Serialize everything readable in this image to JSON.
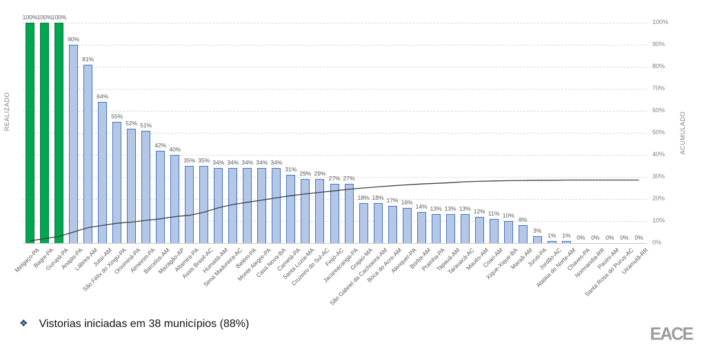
{
  "chart_data": {
    "type": "bar",
    "title": "",
    "left_axis_label": "REALIZADO",
    "right_axis_label": "ACUMULADO",
    "ylim": [
      0,
      100
    ],
    "grid": true,
    "right_axis_ticks": [
      "100%",
      "90%",
      "80%",
      "70%",
      "60%",
      "50%",
      "40%",
      "30%",
      "20%",
      "10%",
      "0%"
    ],
    "highlight_first_n": 3,
    "categories": [
      "Melgaço-PA",
      "Bagre-PA",
      "Gurupá-PA",
      "Anajás-PA",
      "Lábrea-AM",
      "Jutaí-AM",
      "São Félix do Xingu-PA",
      "Oriximiná-PA",
      "Almeirim-PA",
      "Barcelos-AM",
      "Mazagão-AP",
      "Altamira-PA",
      "Assis Brasil-AC",
      "Humaitá-AM",
      "Sena Madureira-AC",
      "Belém-PA",
      "Monte Alegre-PA",
      "Casa Nova-BA",
      "Cametá-PA",
      "Santa Luzia-MA",
      "Cruzeiro do Sul-AC",
      "Feijó-AC",
      "Jacareacanga-PA",
      "Grajaú-MA",
      "São Gabriel da Cachoeira-AM",
      "Boca do Acre-AM",
      "Alenquer-PA",
      "Borba-AM",
      "Prainha-PA",
      "Tapauá-AM",
      "Tarauacá-AC",
      "Maués-AM",
      "Coari-AM",
      "Xique-Xique-BA",
      "Maraã-AM",
      "Juruti-PA",
      "Jordão-AC",
      "Atalaia do Norte-AM",
      "Chaves-PA",
      "Normandia-RR",
      "Pauini-AM",
      "Santa Rosa do Purus-AC",
      "Uiramutã-RR"
    ],
    "series": [
      {
        "name": "Realizado",
        "type": "bar",
        "values": [
          100,
          100,
          100,
          90,
          81,
          64,
          55,
          52,
          51,
          42,
          40,
          35,
          35,
          34,
          34,
          34,
          34,
          34,
          31,
          29,
          29,
          27,
          27,
          18,
          18,
          17,
          16,
          14,
          13,
          13,
          13,
          12,
          11,
          10,
          8,
          3,
          1,
          1,
          0,
          0,
          0,
          0,
          0
        ]
      },
      {
        "name": "Acumulado",
        "type": "line",
        "values": [
          1,
          2,
          3,
          5,
          7,
          8,
          9,
          9.5,
          10.3,
          11,
          12,
          12.6,
          14,
          16,
          17.5,
          18.5,
          19.5,
          20.5,
          21.5,
          22.3,
          23,
          23.7,
          24.4,
          25,
          25.5,
          26,
          26.4,
          26.8,
          27.1,
          27.4,
          27.8,
          28,
          28.2,
          28.3,
          28.4,
          28.5,
          28.5,
          28.6,
          28.6,
          28.6,
          28.6,
          28.6,
          28.6
        ]
      }
    ],
    "colors": {
      "bar_fill": "#B4C7E7",
      "bar_border": "#4472C4",
      "highlight_fill": "#00A651",
      "highlight_border": "#0B7A3C",
      "line_color": "#3F3F3F",
      "grid_color": "#D9D9D9",
      "value_label_color": "#595959",
      "tick_color": "#808080"
    }
  },
  "footer": {
    "bullet": "❖",
    "text": "Vistorias iniciadas em 38 municípios (88%)"
  },
  "logo": {
    "text": "EACE"
  }
}
